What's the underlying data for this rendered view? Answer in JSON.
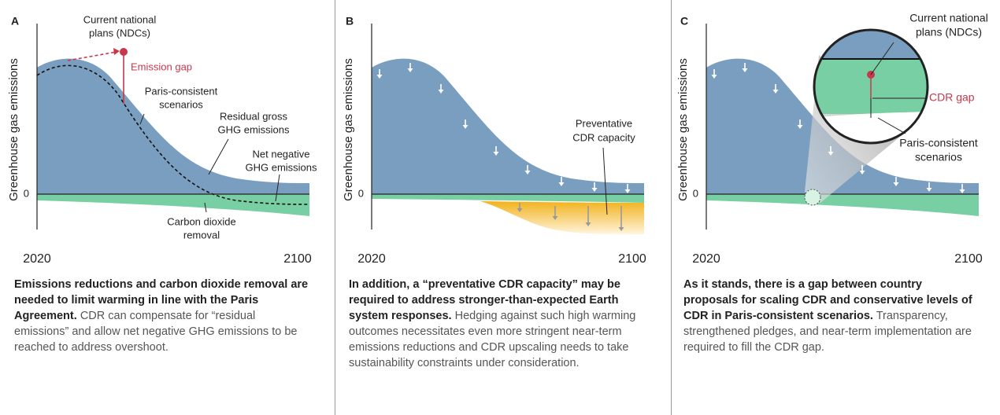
{
  "panels": [
    {
      "letter": "A",
      "y_label": "Greenhouse gas emissions",
      "zero": "0",
      "x_start": "2020",
      "x_end": "2100",
      "annotations": {
        "current_plans": [
          "Current national",
          "plans (NDCs)"
        ],
        "emission_gap": [
          "Emission gap"
        ],
        "paris": [
          "Paris-consistent",
          "scenarios"
        ],
        "residual": [
          "Residual gross",
          "GHG emissions"
        ],
        "net_negative": [
          "Net negative",
          "GHG emissions"
        ],
        "cdr": [
          "Carbon dioxide",
          "removal"
        ]
      },
      "caption": {
        "bold": "Emissions reductions and carbon dioxide removal are needed to limit warming in line with the Paris Agreement.",
        "text": "CDR can compensate for “residual emissions” and allow net negative GHG emissions to be reached to address overshoot."
      }
    },
    {
      "letter": "B",
      "y_label": "Greenhouse gas emissions",
      "zero": "0",
      "x_start": "2020",
      "x_end": "2100",
      "annotations": {
        "preventative": [
          "Preventative",
          "CDR capacity"
        ]
      },
      "caption": {
        "bold": "In addition, a “preventative CDR capacity” may be required to address stronger-than-expected Earth system responses.",
        "text": "Hedging against such high warming outcomes necessitates even  more stringent near-term emissions reductions and CDR upscaling needs to take sustainability constraints under consideration."
      }
    },
    {
      "letter": "C",
      "y_label": "Greenhouse gas emissions",
      "zero": "0",
      "x_start": "2020",
      "x_end": "2100",
      "annotations": {
        "current_plans": [
          "Current national",
          "plans (NDCs)"
        ],
        "cdr_gap": [
          "CDR gap"
        ],
        "paris": [
          "Paris-consistent",
          "scenarios"
        ]
      },
      "caption": {
        "bold": "As it stands, there is a gap between country proposals for scaling CDR and conservative levels of CDR in Paris-consistent scenarios.",
        "text": "Transparency, strengthened pledges, and near-term implementation are required to fill the CDR gap."
      }
    }
  ]
}
